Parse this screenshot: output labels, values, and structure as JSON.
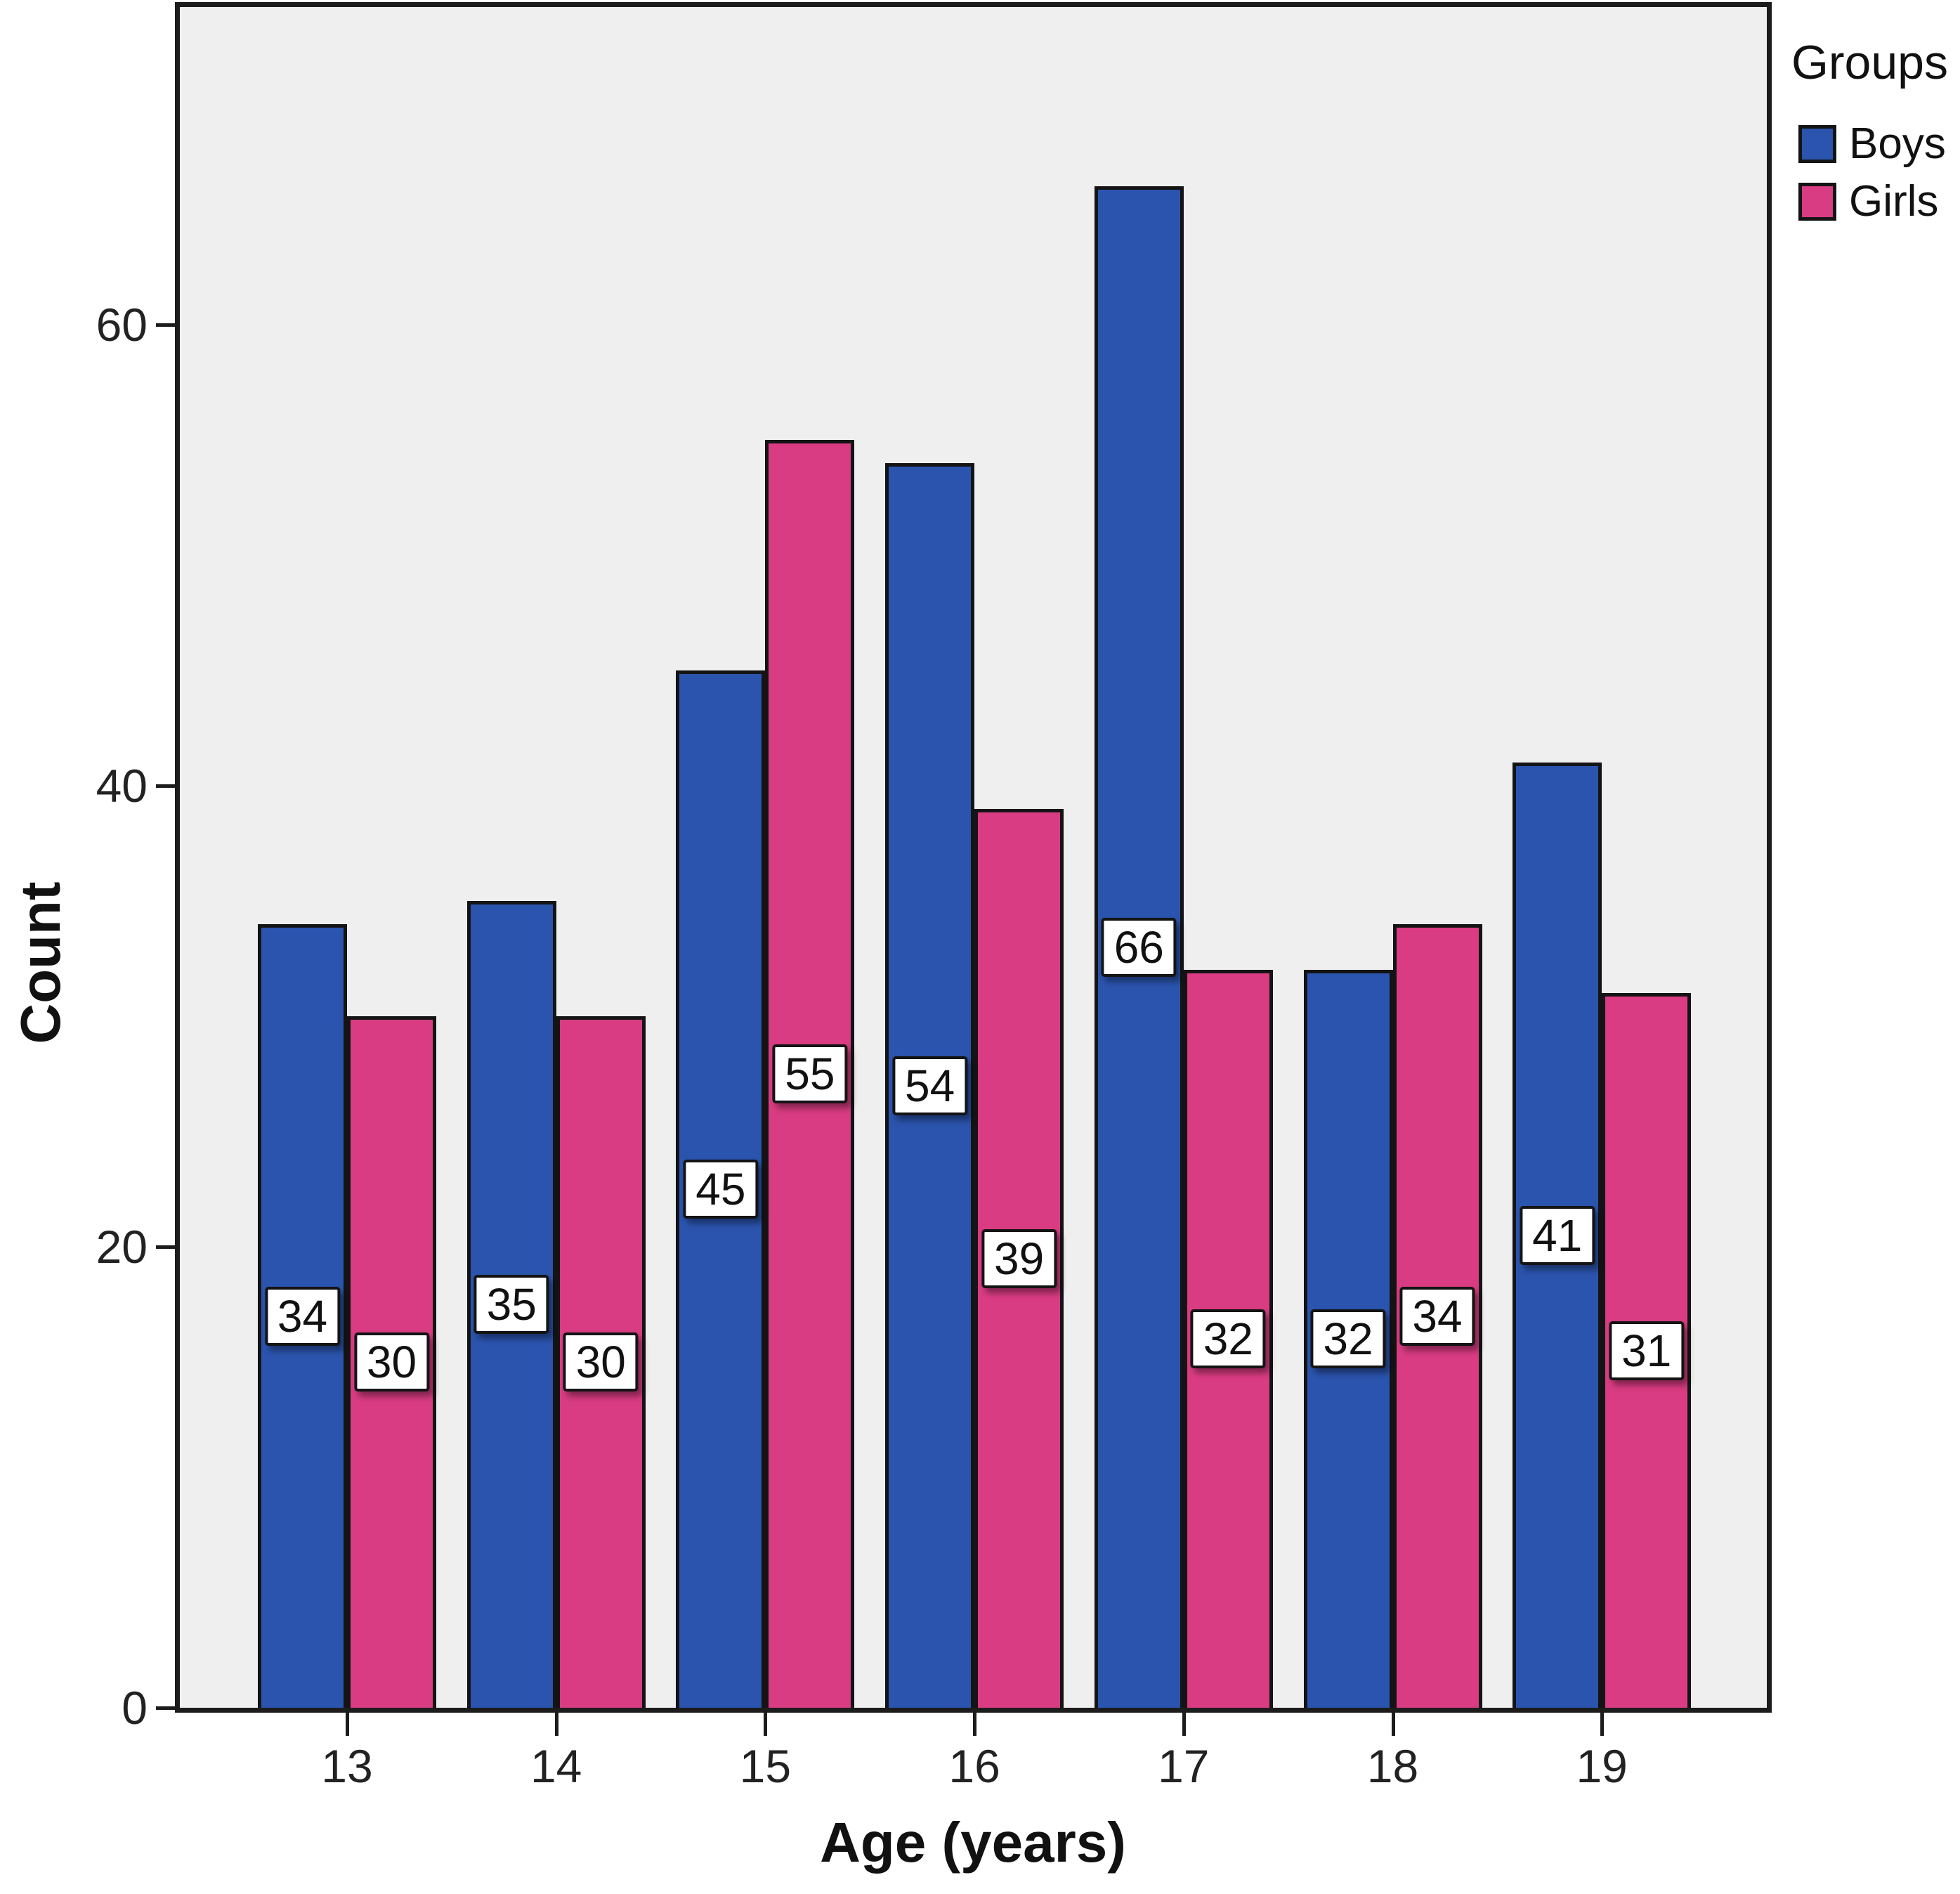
{
  "chart_data": {
    "type": "bar",
    "title": "",
    "xlabel": "Age (years)",
    "ylabel": "Count",
    "categories": [
      "13",
      "14",
      "15",
      "16",
      "17",
      "18",
      "19"
    ],
    "series": [
      {
        "name": "Boys",
        "color": "#2B54AE",
        "values": [
          34,
          35,
          45,
          54,
          66,
          32,
          41
        ]
      },
      {
        "name": "Girls",
        "color": "#D93C82",
        "values": [
          30,
          30,
          55,
          39,
          32,
          34,
          31
        ]
      }
    ],
    "bar_value_labels_shown": true,
    "yticks": [
      0,
      20,
      40,
      60
    ],
    "ylim": [
      0,
      73.8
    ],
    "grid": false,
    "legend": {
      "title": "Groups",
      "position": "top-right"
    },
    "colors": {
      "plot_background": "#EFEFEF",
      "axis_and_frame": "#1C1C1C",
      "value_label_box_bg": "#FFFFFF",
      "value_label_box_border": "#141414"
    }
  }
}
